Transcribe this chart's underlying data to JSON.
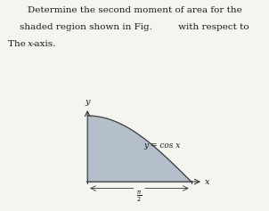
{
  "title_line1": "Determine the second moment of area for the",
  "title_line2": "shaded region shown in Fig.         with respect to",
  "title_line3": "The ",
  "title_line3_italic": "x",
  "title_line3_end": "-axis.",
  "shade_color": "#9FAEBF",
  "shade_alpha": 0.75,
  "curve_label": "y = cos x",
  "y_label": "y",
  "x_label": "x",
  "pi_label": "π",
  "pi_denom": "2",
  "fig_width": 3.02,
  "fig_height": 2.37,
  "background_color": "#f5f5f0",
  "text_color": "#1a1a1a",
  "axis_color": "#333333",
  "font_size_title": 7.5,
  "font_size_labels": 7,
  "font_size_curve": 6.5
}
